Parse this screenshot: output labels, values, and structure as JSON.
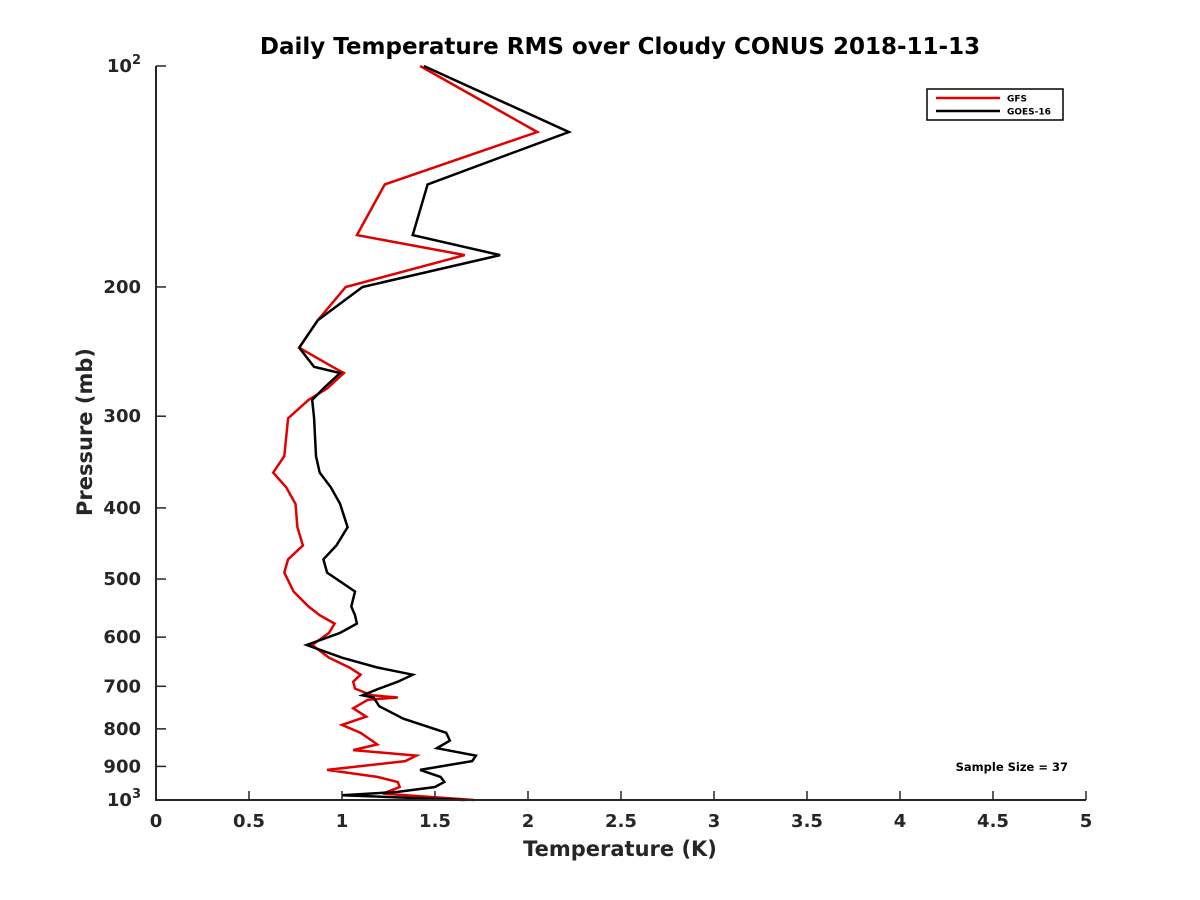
{
  "chart_data": {
    "type": "line",
    "title": "Daily Temperature RMS over Cloudy CONUS 2018-11-13",
    "xlabel": "Temperature (K)",
    "ylabel": "Pressure (mb)",
    "xlim": [
      0,
      5
    ],
    "ylim": [
      100,
      1000
    ],
    "yscale": "log",
    "yreversed": true,
    "grid": false,
    "legend_position": "top-right",
    "x_ticks": [
      "0",
      "0.5",
      "1",
      "1.5",
      "2",
      "2.5",
      "3",
      "3.5",
      "4",
      "4.5",
      "5"
    ],
    "y_ticks": [
      {
        "value": 100,
        "base": "10",
        "exp": "2"
      },
      {
        "value": 200,
        "label": "200"
      },
      {
        "value": 300,
        "label": "300"
      },
      {
        "value": 400,
        "label": "400"
      },
      {
        "value": 500,
        "label": "500"
      },
      {
        "value": 600,
        "label": "600"
      },
      {
        "value": 700,
        "label": "700"
      },
      {
        "value": 800,
        "label": "800"
      },
      {
        "value": 900,
        "label": "900"
      },
      {
        "value": 1000,
        "base": "10",
        "exp": "3"
      }
    ],
    "annotation": "Sample Size = 37",
    "series": [
      {
        "name": "GFS",
        "color": "#e00000",
        "points": [
          [
            1.42,
            100
          ],
          [
            2.05,
            123
          ],
          [
            1.23,
            145
          ],
          [
            1.08,
            170
          ],
          [
            1.66,
            181
          ],
          [
            1.02,
            200
          ],
          [
            0.87,
            222
          ],
          [
            0.77,
            242
          ],
          [
            0.95,
            257
          ],
          [
            1.01,
            262
          ],
          [
            0.92,
            275
          ],
          [
            0.82,
            285
          ],
          [
            0.71,
            302
          ],
          [
            0.69,
            340
          ],
          [
            0.63,
            358
          ],
          [
            0.7,
            375
          ],
          [
            0.75,
            395
          ],
          [
            0.76,
            425
          ],
          [
            0.79,
            450
          ],
          [
            0.71,
            470
          ],
          [
            0.69,
            490
          ],
          [
            0.74,
            520
          ],
          [
            0.82,
            545
          ],
          [
            0.88,
            560
          ],
          [
            0.96,
            575
          ],
          [
            0.93,
            592
          ],
          [
            0.84,
            615
          ],
          [
            0.93,
            640
          ],
          [
            1.04,
            660
          ],
          [
            1.1,
            675
          ],
          [
            1.06,
            690
          ],
          [
            1.07,
            705
          ],
          [
            1.16,
            720
          ],
          [
            1.3,
            725
          ],
          [
            1.14,
            730
          ],
          [
            1.06,
            750
          ],
          [
            1.13,
            770
          ],
          [
            1.0,
            790
          ],
          [
            1.1,
            810
          ],
          [
            1.19,
            840
          ],
          [
            1.06,
            855
          ],
          [
            1.4,
            870
          ],
          [
            1.34,
            885
          ],
          [
            0.92,
            910
          ],
          [
            1.19,
            930
          ],
          [
            1.3,
            945
          ],
          [
            1.31,
            960
          ],
          [
            1.22,
            980
          ],
          [
            1.71,
            1000
          ]
        ]
      },
      {
        "name": "GOES-16",
        "color": "#000000",
        "points": [
          [
            1.44,
            100
          ],
          [
            2.22,
            123
          ],
          [
            1.46,
            145
          ],
          [
            1.38,
            170
          ],
          [
            1.85,
            181
          ],
          [
            1.11,
            200
          ],
          [
            0.87,
            222
          ],
          [
            0.77,
            242
          ],
          [
            0.85,
            257
          ],
          [
            0.99,
            262
          ],
          [
            0.9,
            275
          ],
          [
            0.84,
            285
          ],
          [
            0.85,
            302
          ],
          [
            0.86,
            340
          ],
          [
            0.88,
            358
          ],
          [
            0.94,
            375
          ],
          [
            0.99,
            395
          ],
          [
            1.03,
            425
          ],
          [
            0.97,
            450
          ],
          [
            0.9,
            470
          ],
          [
            0.92,
            490
          ],
          [
            1.07,
            520
          ],
          [
            1.05,
            545
          ],
          [
            1.07,
            560
          ],
          [
            1.08,
            575
          ],
          [
            0.99,
            592
          ],
          [
            0.81,
            615
          ],
          [
            1.0,
            640
          ],
          [
            1.19,
            660
          ],
          [
            1.38,
            675
          ],
          [
            1.3,
            690
          ],
          [
            1.2,
            705
          ],
          [
            1.11,
            720
          ],
          [
            1.17,
            725
          ],
          [
            1.2,
            745
          ],
          [
            1.33,
            775
          ],
          [
            1.56,
            810
          ],
          [
            1.58,
            830
          ],
          [
            1.51,
            850
          ],
          [
            1.72,
            870
          ],
          [
            1.7,
            885
          ],
          [
            1.42,
            910
          ],
          [
            1.53,
            930
          ],
          [
            1.55,
            945
          ],
          [
            1.5,
            960
          ],
          [
            1.3,
            975
          ],
          [
            1.0,
            985
          ],
          [
            1.66,
            1000
          ]
        ]
      }
    ]
  }
}
